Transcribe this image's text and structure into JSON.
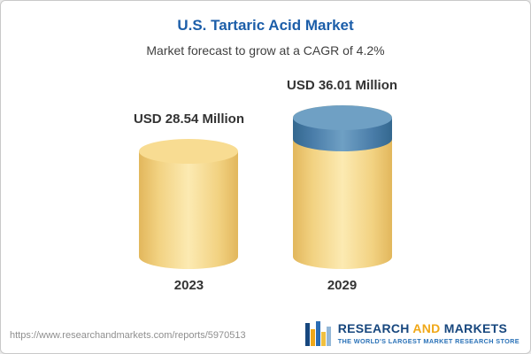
{
  "chart_data": {
    "type": "bar",
    "title": "U.S. Tartaric Acid Market",
    "subtitle": "Market forecast to grow at a CAGR of 4.2%",
    "categories": [
      "2023",
      "2029"
    ],
    "values": [
      28.54,
      36.01
    ],
    "value_labels": [
      "USD 28.54 Million",
      "USD 36.01 Million"
    ],
    "unit": "USD Million",
    "cagr_percent": 4.2,
    "legend_position": "none",
    "grid": false,
    "colors": {
      "title": "#1c5ea9",
      "bar_base": "#f2d282",
      "bar_growth_segment": "#4a7da9",
      "label_text": "#333333"
    }
  },
  "footer": {
    "url": "https://www.researchandmarkets.com/reports/5970513",
    "brand": {
      "research": "RESEARCH",
      "and": "AND",
      "markets": "MARKETS",
      "tagline": "THE WORLD'S LARGEST MARKET RESEARCH STORE"
    }
  }
}
